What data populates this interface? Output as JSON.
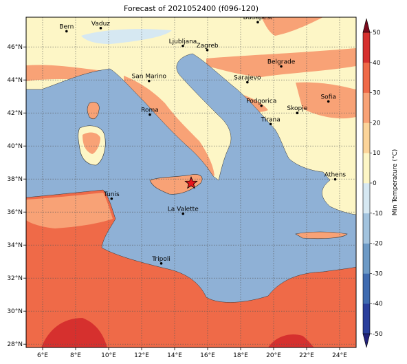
{
  "title": "Forecast of 2021052400 (f096-120)",
  "map": {
    "lon_range": [
      5,
      25
    ],
    "lat_range": [
      27.8,
      47.8
    ],
    "x_ticks": [
      "6°E",
      "8°E",
      "10°E",
      "12°E",
      "14°E",
      "16°E",
      "18°E",
      "20°E",
      "22°E",
      "24°E"
    ],
    "x_tick_values": [
      6,
      8,
      10,
      12,
      14,
      16,
      18,
      20,
      22,
      24
    ],
    "y_ticks": [
      "28°N",
      "30°N",
      "32°N",
      "34°N",
      "36°N",
      "38°N",
      "40°N",
      "42°N",
      "44°N",
      "46°N"
    ],
    "y_tick_values": [
      28,
      30,
      32,
      34,
      36,
      38,
      40,
      42,
      44,
      46
    ],
    "grid": true,
    "marker": {
      "name": "star-marker",
      "lon": 15.0,
      "lat": 37.75,
      "color": "#e8151b"
    },
    "cities": [
      {
        "name": "Bern",
        "lon": 7.45,
        "lat": 46.95
      },
      {
        "name": "Vaduz",
        "lon": 9.52,
        "lat": 47.14
      },
      {
        "name": "Budapest",
        "lon": 19.04,
        "lat": 47.5
      },
      {
        "name": "Ljubljana",
        "lon": 14.5,
        "lat": 46.06
      },
      {
        "name": "Zagreb",
        "lon": 15.98,
        "lat": 45.81
      },
      {
        "name": "San Marino",
        "lon": 12.45,
        "lat": 43.94
      },
      {
        "name": "Belgrade",
        "lon": 20.46,
        "lat": 44.82
      },
      {
        "name": "Sarajevo",
        "lon": 18.41,
        "lat": 43.86
      },
      {
        "name": "Sofia",
        "lon": 23.32,
        "lat": 42.7
      },
      {
        "name": "Roma",
        "lon": 12.5,
        "lat": 41.9
      },
      {
        "name": "Podgorica",
        "lon": 19.26,
        "lat": 42.44
      },
      {
        "name": "Skopje",
        "lon": 21.43,
        "lat": 42.0
      },
      {
        "name": "Tirana",
        "lon": 19.82,
        "lat": 41.33
      },
      {
        "name": "Athens",
        "lon": 23.73,
        "lat": 37.98
      },
      {
        "name": "Tunis",
        "lon": 10.18,
        "lat": 36.81
      },
      {
        "name": "La Valette",
        "lon": 14.51,
        "lat": 35.9
      },
      {
        "name": "Tripoli",
        "lon": 13.19,
        "lat": 32.89
      }
    ]
  },
  "colorbar": {
    "label": "Min Temperature (°C)",
    "ticks": [
      "-50",
      "-40",
      "-30",
      "-20",
      "-10",
      "0",
      "10",
      "20",
      "30",
      "40",
      "50"
    ],
    "tick_values": [
      -50,
      -40,
      -30,
      -20,
      -10,
      0,
      10,
      20,
      30,
      40,
      50
    ],
    "colors": [
      "#22227a",
      "#2a3f9c",
      "#3f6bb0",
      "#6d9ac6",
      "#a2c3de",
      "#d6e8f2",
      "#fdf6c6",
      "#fbd49a",
      "#f8a276",
      "#ef6a48",
      "#d6302e",
      "#a50f24",
      "#7a0a1c"
    ],
    "sea_color": "#8fb1d6",
    "lake_color": "#d9ecf5"
  }
}
